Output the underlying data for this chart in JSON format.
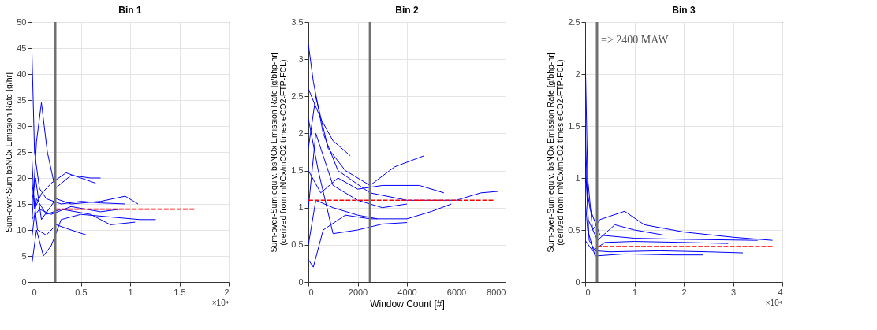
{
  "chart_data": [
    {
      "type": "line",
      "title": "Bin 1",
      "ylabel": "Sum-over-Sum bsNOx Emission Rate [g/hr]",
      "xlim": [
        0,
        2
      ],
      "xticks": [
        0,
        0.5,
        1,
        1.5,
        2
      ],
      "ylim": [
        0,
        50
      ],
      "yticks": [
        0,
        5,
        10,
        15,
        20,
        25,
        30,
        35,
        40,
        45,
        50
      ],
      "grid": true,
      "annotations": [
        "×10⁴"
      ],
      "ref_lines": [
        {
          "axis": "x",
          "value": 0.24,
          "color": "#707070"
        }
      ],
      "series": [
        {
          "color": "#0000ff",
          "x": [
            0,
            0.03,
            0.08,
            0.15,
            0.3,
            0.5,
            0.7,
            0.95
          ],
          "values": [
            47,
            25,
            18,
            16,
            15,
            15.5,
            15.2,
            15
          ]
        },
        {
          "color": "#0000ff",
          "x": [
            0,
            0.05,
            0.1,
            0.16,
            0.24,
            0.4,
            0.6,
            0.7
          ],
          "values": [
            10,
            27,
            34.5,
            25,
            18,
            20.5,
            20,
            20
          ]
        },
        {
          "color": "#0000ff",
          "x": [
            0,
            0.05,
            0.12,
            0.2,
            0.3,
            0.5,
            0.8,
            1.1,
            1.26
          ],
          "values": [
            3,
            10,
            5,
            7,
            12,
            13,
            12.5,
            12,
            12
          ]
        },
        {
          "color": "#0000ff",
          "x": [
            0,
            0.04,
            0.1,
            0.25,
            0.4,
            0.7,
            0.95,
            1.08
          ],
          "values": [
            15,
            20,
            12,
            16,
            15,
            15.5,
            16.5,
            15
          ]
        },
        {
          "color": "#0000ff",
          "x": [
            0,
            0.06,
            0.15,
            0.25,
            0.4,
            0.56
          ],
          "values": [
            20,
            10,
            9,
            11,
            10,
            9
          ]
        },
        {
          "color": "#0000ff",
          "x": [
            0,
            0.05,
            0.15,
            0.3,
            0.6,
            0.8,
            1.05
          ],
          "values": [
            8,
            16,
            13,
            14,
            13,
            11,
            11.5
          ]
        },
        {
          "color": "#0000ff",
          "x": [
            0,
            0.03,
            0.1,
            0.2,
            0.35,
            0.5,
            0.65
          ],
          "values": [
            25,
            14,
            17,
            19,
            21,
            20,
            19
          ]
        },
        {
          "color": "#0000ff",
          "x": [
            0,
            0.08,
            0.2,
            0.4,
            0.7,
            0.9
          ],
          "values": [
            12,
            14,
            13,
            14.5,
            13.5,
            14
          ]
        },
        {
          "color": "#ff0000",
          "line_style": "dashed",
          "x": [
            0.24,
            1.65
          ],
          "values": [
            14,
            14
          ]
        }
      ]
    },
    {
      "type": "line",
      "title": "Bin 2",
      "xlabel": "Window Count [#]",
      "ylabel": "Sum-over-Sum equiv. bsNOx Emission Rate [g/bhp-hr]\n(derived from mNOx/mCO2 times eCO2-FTP-FCL)",
      "xlim": [
        0,
        8000
      ],
      "xticks": [
        0,
        2000,
        4000,
        6000,
        8000
      ],
      "ylim": [
        0,
        3.5
      ],
      "yticks": [
        0,
        0.5,
        1,
        1.5,
        2,
        2.5,
        3,
        3.5
      ],
      "grid": true,
      "ref_lines": [
        {
          "axis": "x",
          "value": 2500,
          "color": "#707070"
        }
      ],
      "series": [
        {
          "color": "#0000ff",
          "x": [
            0,
            200,
            600,
            1200,
            2500,
            4000,
            6000,
            7000,
            7700
          ],
          "values": [
            3.2,
            2.7,
            2.0,
            1.5,
            1.2,
            1.1,
            1.1,
            1.2,
            1.22
          ]
        },
        {
          "color": "#0000ff",
          "x": [
            0,
            300,
            800,
            1500,
            2500,
            3500,
            4700
          ],
          "values": [
            1.8,
            2.5,
            1.8,
            1.5,
            1.3,
            1.55,
            1.7
          ]
        },
        {
          "color": "#0000ff",
          "x": [
            0,
            200,
            600,
            1500,
            2500,
            4000,
            5000,
            5800
          ],
          "values": [
            0.3,
            0.2,
            0.7,
            0.9,
            0.85,
            0.85,
            0.95,
            1.05
          ]
        },
        {
          "color": "#0000ff",
          "x": [
            0,
            400,
            1000,
            2000,
            3000,
            4000
          ],
          "values": [
            2.2,
            1.5,
            0.65,
            0.7,
            0.78,
            0.8
          ]
        },
        {
          "color": "#0000ff",
          "x": [
            0,
            300,
            1000,
            2000,
            3000,
            4000
          ],
          "values": [
            1.0,
            2.0,
            1.3,
            1.1,
            1.0,
            1.05
          ]
        },
        {
          "color": "#0000ff",
          "x": [
            0,
            500,
            1200,
            2000,
            3000,
            4500,
            5500
          ],
          "values": [
            1.5,
            1.2,
            1.4,
            1.25,
            1.3,
            1.3,
            1.2
          ]
        },
        {
          "color": "#0000ff",
          "x": [
            0,
            500,
            1000,
            1700
          ],
          "values": [
            2.6,
            2.2,
            1.9,
            1.7
          ]
        },
        {
          "color": "#0000ff",
          "x": [
            0,
            300,
            1000,
            2000,
            2800
          ],
          "values": [
            0.5,
            1.1,
            1.0,
            0.9,
            0.85
          ]
        },
        {
          "color": "#ff0000",
          "line_style": "dashed",
          "x": [
            0,
            7500
          ],
          "values": [
            1.1,
            1.1
          ]
        }
      ]
    },
    {
      "type": "line",
      "title": "Bin 3",
      "ylabel": "Sum-over-Sum equiv. bsNOx Emission Rate [g/bhp-hr]\n(derived from mNOx/mCO2 times eCO2-FTP-FCL)",
      "xlim": [
        0,
        4
      ],
      "xticks": [
        0,
        1,
        2,
        3,
        4
      ],
      "ylim": [
        0,
        2.5
      ],
      "yticks": [
        0,
        0.5,
        1,
        1.5,
        2,
        2.5
      ],
      "grid": true,
      "annotations": [
        "=> 2400 MAW",
        "×10⁴"
      ],
      "ref_lines": [
        {
          "axis": "x",
          "value": 0.24,
          "color": "#707070"
        }
      ],
      "series": [
        {
          "color": "#0000ff",
          "x": [
            0,
            0.05,
            0.15,
            0.3,
            0.8,
            1.2,
            2,
            3,
            3.8
          ],
          "values": [
            2.2,
            1.0,
            0.5,
            0.6,
            0.68,
            0.55,
            0.48,
            0.43,
            0.4
          ]
        },
        {
          "color": "#0000ff",
          "x": [
            0,
            0.08,
            0.2,
            0.5,
            1.5,
            2.5,
            3.2
          ],
          "values": [
            1.2,
            0.4,
            0.3,
            0.29,
            0.3,
            0.29,
            0.28
          ]
        },
        {
          "color": "#0000ff",
          "x": [
            0,
            0.05,
            0.2,
            0.8,
            1.8,
            2.4
          ],
          "values": [
            0.8,
            0.5,
            0.25,
            0.27,
            0.26,
            0.26
          ]
        },
        {
          "color": "#0000ff",
          "x": [
            0,
            0.1,
            0.3,
            1,
            2,
            3.5
          ],
          "values": [
            1.0,
            0.7,
            0.45,
            0.42,
            0.41,
            0.4
          ]
        },
        {
          "color": "#0000ff",
          "x": [
            0,
            0.15,
            0.4,
            1,
            2,
            2.9
          ],
          "values": [
            0.4,
            0.3,
            0.38,
            0.39,
            0.38,
            0.37
          ]
        },
        {
          "color": "#0000ff",
          "x": [
            0,
            0.06,
            0.25,
            0.6,
            1,
            1.6
          ],
          "values": [
            1.5,
            0.6,
            0.4,
            0.55,
            0.5,
            0.45
          ]
        },
        {
          "color": "#ff0000",
          "line_style": "dashed",
          "x": [
            0.24,
            3.8
          ],
          "values": [
            0.34,
            0.34
          ]
        }
      ]
    }
  ]
}
